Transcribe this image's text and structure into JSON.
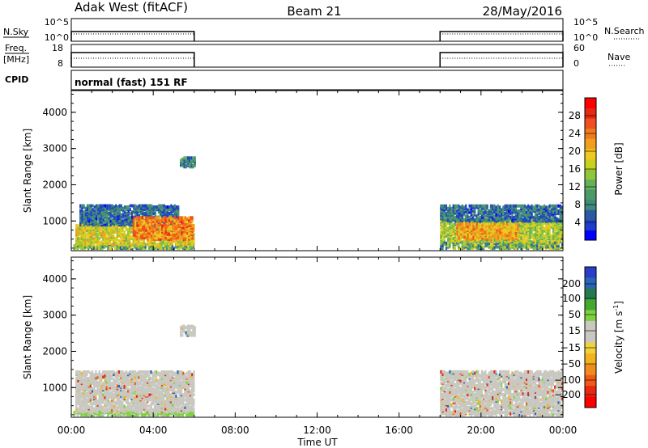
{
  "header": {
    "station": "Adak West (fitACF)",
    "beam": "Beam 21",
    "date": "28/May/2016"
  },
  "panels": {
    "nsky_label": "N.Sky",
    "nsky_ticks": [
      "10^5",
      "10^0"
    ],
    "nsearch_label": "N.Search",
    "nsearch_ticks": [
      "10^5",
      "10^0"
    ],
    "freq_label": "Freq.",
    "freq_unit": "[MHz]",
    "freq_ticks": [
      "18",
      "8"
    ],
    "nave_label": "Nave",
    "nave_ticks": [
      "60",
      "0"
    ],
    "cpid_label": "CPID",
    "cpid_text": "normal (fast) 151 RF"
  },
  "chart_data": [
    {
      "type": "heatmap",
      "title": "",
      "ylabel": "Slant Range [km]",
      "xlabel": "",
      "y_ticks": [
        "1000",
        "2000",
        "3000",
        "4000"
      ],
      "ylim": [
        180,
        4600
      ],
      "xlim": [
        "00:00",
        "24:00"
      ],
      "data_coverage_ut": [
        [
          "00:00",
          "06:00"
        ],
        [
          "18:00",
          "24:00"
        ]
      ],
      "colorbar": {
        "label": "Power [dB]",
        "ticks": [
          "4",
          "8",
          "12",
          "16",
          "20",
          "24",
          "28"
        ],
        "range": [
          0,
          32
        ],
        "colors": [
          "#0000ff",
          "#1e3ec8",
          "#2c5aa0",
          "#3f8a78",
          "#4a9a6a",
          "#63b15a",
          "#8fc63a",
          "#c8d21e",
          "#f0c81e",
          "#f0a01e",
          "#f07a1e",
          "#f0501e",
          "#e62814",
          "#ff0000"
        ]
      },
      "blobs": [
        {
          "t0": 0.1,
          "t1": 6.0,
          "r0": 200,
          "r1": 340,
          "value": "mixed-low"
        },
        {
          "t0": 0.2,
          "t1": 6.0,
          "r0": 300,
          "r1": 850,
          "value": 18
        },
        {
          "t0": 0.4,
          "t1": 5.2,
          "r0": 850,
          "r1": 1400,
          "value": 6
        },
        {
          "t0": 3.0,
          "t1": 5.9,
          "r0": 450,
          "r1": 1050,
          "value": 24
        },
        {
          "t0": 5.3,
          "t1": 6.0,
          "r0": 2450,
          "r1": 2700,
          "value": 8
        },
        {
          "t0": 18.0,
          "t1": 24.0,
          "r0": 200,
          "r1": 400,
          "value": "mixed-low"
        },
        {
          "t0": 18.0,
          "t1": 24.0,
          "r0": 400,
          "r1": 1000,
          "value": 16
        },
        {
          "t0": 18.0,
          "t1": 24.0,
          "r0": 950,
          "r1": 1400,
          "value": 6
        },
        {
          "t0": 18.8,
          "t1": 21.8,
          "r0": 450,
          "r1": 900,
          "value": 22
        }
      ]
    },
    {
      "type": "heatmap",
      "title": "",
      "ylabel": "Slant Range [km]",
      "xlabel": "Time UT",
      "y_ticks": [
        "1000",
        "2000",
        "3000",
        "4000"
      ],
      "x_ticks": [
        "00:00",
        "04:00",
        "08:00",
        "12:00",
        "16:00",
        "20:00",
        "00:00"
      ],
      "ylim": [
        180,
        4600
      ],
      "xlim": [
        "00:00",
        "24:00"
      ],
      "colorbar": {
        "label": "Velocity [m s",
        "label_sup": "-1",
        "label_end": "]",
        "ticks": [
          "200",
          "100",
          "50",
          "15",
          "−15",
          "−50",
          "−100",
          "−200"
        ],
        "bands_top_to_bottom": [
          "#2a3ec8",
          "#2a64b4",
          "#287850",
          "#44a830",
          "#7cd23c",
          "#c8c8c0",
          "#c8c8c0",
          "#f0d23c",
          "#f0b41e",
          "#f08c1e",
          "#f05a14",
          "#e62814",
          "#ff0000"
        ]
      },
      "blobs": [
        {
          "t0": 0.1,
          "t1": 6.0,
          "r0": 200,
          "r1": 330,
          "value": "low-velocity-green"
        },
        {
          "t0": 0.2,
          "t1": 6.0,
          "r0": 300,
          "r1": 1400,
          "value": 0
        },
        {
          "t0": 5.3,
          "t1": 6.0,
          "r0": 2400,
          "r1": 2650,
          "value": 0
        },
        {
          "t0": 18.0,
          "t1": 24.0,
          "r0": 200,
          "r1": 1400,
          "value": 0
        }
      ]
    }
  ]
}
